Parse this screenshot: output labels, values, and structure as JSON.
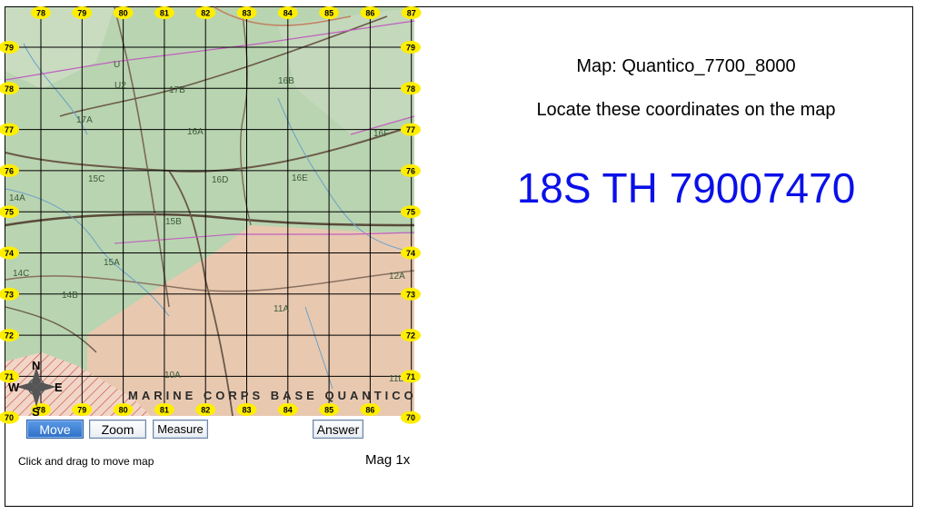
{
  "map": {
    "title_prefix": "Map: ",
    "name": "Quantico_7700_8000",
    "instruction": "Locate these coordinates on the map",
    "target_coordinate": "18S TH 79007470",
    "magnification": "Mag 1x",
    "status": "Click and drag to move map",
    "terrain_labels": [
      "U",
      "U2",
      "17B",
      "16B",
      "17A",
      "16A",
      "16F",
      "15C",
      "16D",
      "16E",
      "14A",
      "15B",
      "15A",
      "14C",
      "14B",
      "12A",
      "11A",
      "10A",
      "11L"
    ],
    "banner": "MARINE CORPS BASE QUANTICO",
    "grid_easting_labels": [
      "78",
      "79",
      "80",
      "81",
      "82",
      "83",
      "84",
      "85",
      "86",
      "87"
    ],
    "grid_northing_labels": [
      "79",
      "78",
      "77",
      "76",
      "75",
      "74",
      "73",
      "72",
      "71",
      "70"
    ],
    "compass": {
      "north": "N",
      "south": "S",
      "east": "E",
      "west": "W"
    }
  },
  "toolbar": {
    "move_label": "Move",
    "zoom_label": "Zoom",
    "measure_label": "Measure",
    "answer_label": "Answer",
    "active_tool": "Move"
  },
  "colors": {
    "target_coordinate": "#0a10e8",
    "grid_label_fill": "#ffee00",
    "terrain_green": "#b9d4b0",
    "restricted_area": "#e8c9b0",
    "grid_line": "#000000",
    "active_button": "#3a7bd5"
  }
}
